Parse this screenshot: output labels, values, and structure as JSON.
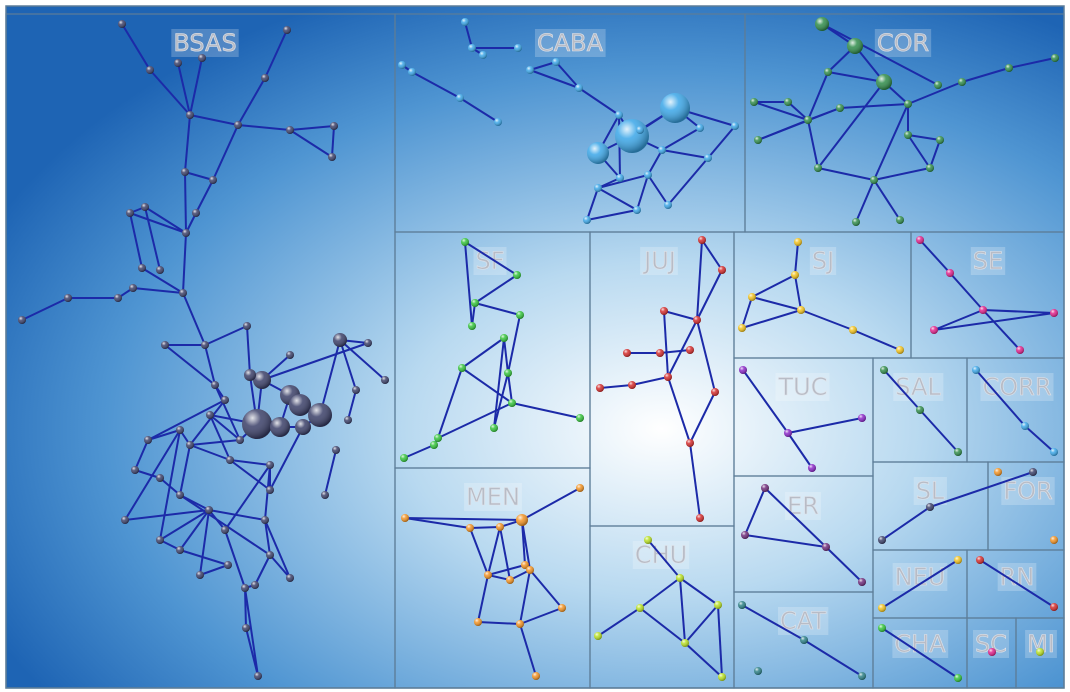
{
  "treemap": {
    "panels": [
      {
        "id": "BSAS",
        "label": "BSAS",
        "color": "#3a3f68"
      },
      {
        "id": "CABA",
        "label": "CABA",
        "color": "#3aa6e8"
      },
      {
        "id": "COR",
        "label": "COR",
        "color": "#2f8c4a"
      },
      {
        "id": "SF",
        "label": "SF",
        "color": "#33c43a"
      },
      {
        "id": "JUJ",
        "label": "JUJ",
        "color": "#d42b2b"
      },
      {
        "id": "SJ",
        "label": "SJ",
        "color": "#f2c21c"
      },
      {
        "id": "SE",
        "label": "SE",
        "color": "#e0208a"
      },
      {
        "id": "TUC",
        "label": "TUC",
        "color": "#8a26c8"
      },
      {
        "id": "SAL",
        "label": "SAL",
        "color": "#2f8c4a"
      },
      {
        "id": "CORR",
        "label": "CORR",
        "color": "#3aa6e8"
      },
      {
        "id": "MEN",
        "label": "MEN",
        "color": "#f29222"
      },
      {
        "id": "ER",
        "label": "ER",
        "color": "#6e2a7a"
      },
      {
        "id": "SL",
        "label": "SL",
        "color": "#3a3f68"
      },
      {
        "id": "FOR",
        "label": "FOR",
        "color": "#f29222"
      },
      {
        "id": "CHU",
        "label": "CHU",
        "color": "#b8e022"
      },
      {
        "id": "NEU",
        "label": "NEU",
        "color": "#f2c21c"
      },
      {
        "id": "RN",
        "label": "RN",
        "color": "#d42b2b"
      },
      {
        "id": "CAT",
        "label": "CAT",
        "color": "#2a7f86"
      },
      {
        "id": "CHA",
        "label": "CHA",
        "color": "#33c43a"
      },
      {
        "id": "SC",
        "label": "SC",
        "color": "#e0208a"
      },
      {
        "id": "MI",
        "label": "MI",
        "color": "#b8e022"
      }
    ]
  }
}
